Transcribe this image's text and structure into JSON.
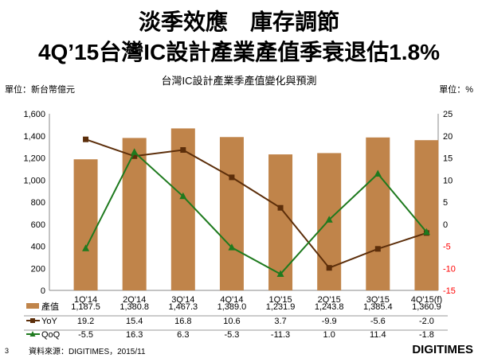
{
  "title_line1": "淡季效應　庫存調節",
  "title_line2": "4Q’15台灣IC設計產業產值季衰退估1.8%",
  "page_number": "3",
  "source": "資料來源：DIGITIMES，2015/11",
  "logo": "DIGITIMES",
  "chart_data": {
    "type": "bar+line",
    "title": "台灣IC設計產業季產值變化與預測",
    "ylabel": "單位：新台幣億元",
    "y2label": "單位：%",
    "ylim": [
      0,
      1600
    ],
    "yticks": [
      "0",
      "200",
      "400",
      "600",
      "800",
      "1,000",
      "1,200",
      "1,400",
      "1,600"
    ],
    "y2lim": [
      -15,
      25
    ],
    "y2ticks": [
      "25",
      "20",
      "15",
      "10",
      "5",
      "0",
      "-5",
      "-10",
      "-15"
    ],
    "categories": [
      "1Q'14",
      "2Q'14",
      "3Q'14",
      "4Q'14",
      "1Q'15",
      "2Q'15",
      "3Q'15",
      "4Q'15(f)"
    ],
    "series": [
      {
        "name": "產值",
        "type": "bar",
        "axis": "left",
        "color": "#C0844A",
        "values": [
          1187.5,
          1380.8,
          1467.3,
          1389.0,
          1231.9,
          1243.8,
          1385.4,
          1360.9
        ],
        "labels": [
          "1,187.5",
          "1,380.8",
          "1,467.3",
          "1,389.0",
          "1,231.9",
          "1,243.8",
          "1,385.4",
          "1,360.9"
        ]
      },
      {
        "name": "YoY",
        "type": "line",
        "axis": "right",
        "color": "#5C2E0A",
        "marker": "square",
        "values": [
          19.2,
          15.4,
          16.8,
          10.6,
          3.7,
          -9.9,
          -5.6,
          -2.0
        ],
        "labels": [
          "19.2",
          "15.4",
          "16.8",
          "10.6",
          "3.7",
          "-9.9",
          "-5.6",
          "-2.0"
        ]
      },
      {
        "name": "QoQ",
        "type": "line",
        "axis": "right",
        "color": "#1E7A1E",
        "marker": "triangle",
        "values": [
          -5.5,
          16.3,
          6.3,
          -5.3,
          -11.3,
          1.0,
          11.4,
          -1.8
        ],
        "labels": [
          "-5.5",
          "16.3",
          "6.3",
          "-5.3",
          "-11.3",
          "1.0",
          "11.4",
          "-1.8"
        ]
      }
    ],
    "negative_tick_color": "#FF0000"
  }
}
